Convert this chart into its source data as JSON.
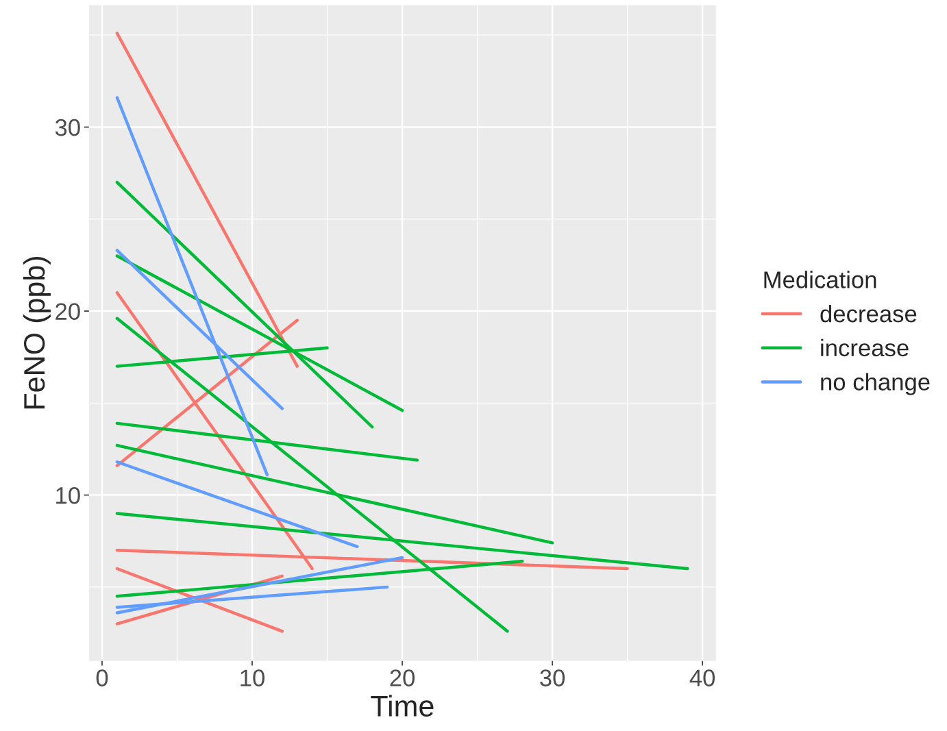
{
  "chart_data": {
    "type": "line",
    "xlabel": "Time",
    "ylabel": "FeNO (ppb)",
    "legend_title": "Medication",
    "xlim": [
      -0.87,
      40.9
    ],
    "ylim": [
      0.99,
      36.63
    ],
    "xticks": [
      0,
      10,
      20,
      30,
      40
    ],
    "yticks": [
      10,
      20,
      30
    ],
    "grid": true,
    "legend": "right",
    "line_style": "solid",
    "marker": "none",
    "series": [
      {
        "name": "decrease",
        "color": "#f8766d",
        "x": [
          1,
          13
        ],
        "values": [
          35.1,
          17.0
        ]
      },
      {
        "color": "#f8766d",
        "x": [
          1,
          14
        ],
        "values": [
          21.0,
          6.0
        ]
      },
      {
        "color": "#f8766d",
        "x": [
          1,
          13
        ],
        "values": [
          11.6,
          19.5
        ]
      },
      {
        "color": "#f8766d",
        "x": [
          1,
          35
        ],
        "values": [
          7.0,
          6.0
        ]
      },
      {
        "color": "#f8766d",
        "x": [
          1,
          12
        ],
        "values": [
          6.0,
          2.6
        ]
      },
      {
        "color": "#f8766d",
        "x": [
          1,
          12
        ],
        "values": [
          3.0,
          5.6
        ]
      },
      {
        "name": "increase",
        "color": "#00ba38",
        "x": [
          1,
          18
        ],
        "values": [
          27.0,
          13.7
        ]
      },
      {
        "color": "#00ba38",
        "x": [
          1,
          20
        ],
        "values": [
          23.0,
          14.6
        ]
      },
      {
        "color": "#00ba38",
        "x": [
          1,
          27
        ],
        "values": [
          19.6,
          2.6
        ]
      },
      {
        "color": "#00ba38",
        "x": [
          1,
          15
        ],
        "values": [
          17.0,
          18.0
        ]
      },
      {
        "color": "#00ba38",
        "x": [
          1,
          21
        ],
        "values": [
          13.9,
          11.9
        ]
      },
      {
        "color": "#00ba38",
        "x": [
          1,
          30
        ],
        "values": [
          12.7,
          7.4
        ]
      },
      {
        "color": "#00ba38",
        "x": [
          1,
          39
        ],
        "values": [
          9.0,
          6.0
        ]
      },
      {
        "color": "#00ba38",
        "x": [
          1,
          28
        ],
        "values": [
          4.5,
          6.4
        ]
      },
      {
        "name": "no change",
        "color": "#619cff",
        "x": [
          1,
          11
        ],
        "values": [
          31.6,
          11.1
        ]
      },
      {
        "color": "#619cff",
        "x": [
          1,
          12
        ],
        "values": [
          23.3,
          14.7
        ]
      },
      {
        "color": "#619cff",
        "x": [
          1,
          17
        ],
        "values": [
          11.8,
          7.2
        ]
      },
      {
        "color": "#619cff",
        "x": [
          1,
          19
        ],
        "values": [
          3.9,
          5.0
        ]
      },
      {
        "color": "#619cff",
        "x": [
          1,
          20
        ],
        "values": [
          3.6,
          6.6
        ]
      }
    ]
  }
}
